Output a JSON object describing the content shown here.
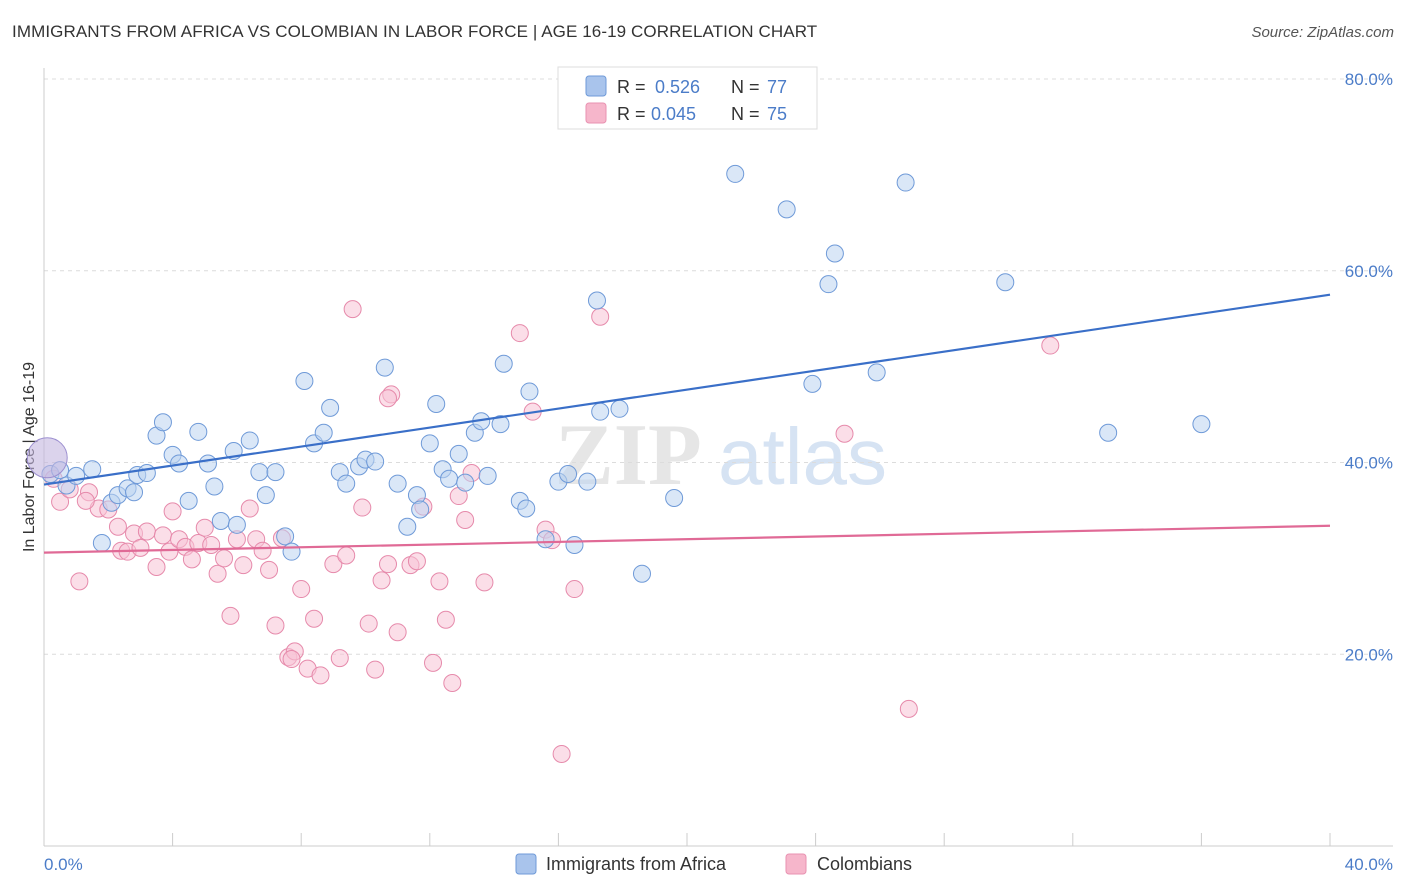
{
  "title": "IMMIGRANTS FROM AFRICA VS COLOMBIAN IN LABOR FORCE | AGE 16-19 CORRELATION CHART",
  "source": "Source: ZipAtlas.com",
  "watermark": {
    "zip": "ZIP",
    "atlas": "atlas"
  },
  "colors": {
    "blue": "#3a6fc8",
    "blue_fill": "#a9c4ec",
    "pink": "#e06a96",
    "pink_fill": "#f6b6cb",
    "grid": "#dddddd",
    "tick_text": "#4b7cc8"
  },
  "legend": {
    "rows": [
      {
        "r_label": "R =",
        "r_value": "0.526",
        "n_label": "N =",
        "n_value": "77"
      },
      {
        "r_label": "R =",
        "r_value": "0.045",
        "n_label": "N =",
        "n_value": "75"
      }
    ]
  },
  "chart_data": {
    "type": "scatter",
    "title": "IMMIGRANTS FROM AFRICA VS COLOMBIAN IN LABOR FORCE | AGE 16-19 CORRELATION CHART",
    "xlabel": "",
    "ylabel": "In Labor Force | Age 16-19",
    "xlim": [
      0,
      40
    ],
    "ylim": [
      0,
      80
    ],
    "x_tick_labels": [
      "0.0%",
      "40.0%"
    ],
    "y_ticks": [
      20,
      40,
      60,
      80
    ],
    "y_tick_labels": [
      "20.0%",
      "40.0%",
      "60.0%",
      "80.0%"
    ],
    "grid": true,
    "series": [
      {
        "name": "Immigrants from Africa",
        "r": 0.526,
        "n": 77,
        "trend": {
          "x": [
            0,
            40
          ],
          "y": [
            37.7,
            57.5
          ]
        },
        "points": [
          [
            0.2,
            38.8
          ],
          [
            0.5,
            39.2
          ],
          [
            0.7,
            37.6
          ],
          [
            1.0,
            38.6
          ],
          [
            1.5,
            39.3
          ],
          [
            1.8,
            31.6
          ],
          [
            2.1,
            35.8
          ],
          [
            2.3,
            36.6
          ],
          [
            2.6,
            37.3
          ],
          [
            2.8,
            36.9
          ],
          [
            2.9,
            38.7
          ],
          [
            3.2,
            38.9
          ],
          [
            3.5,
            42.8
          ],
          [
            3.7,
            44.2
          ],
          [
            4.0,
            40.8
          ],
          [
            4.2,
            39.9
          ],
          [
            4.5,
            36.0
          ],
          [
            4.8,
            43.2
          ],
          [
            5.1,
            39.9
          ],
          [
            5.3,
            37.5
          ],
          [
            5.5,
            33.9
          ],
          [
            5.9,
            41.2
          ],
          [
            6.0,
            33.5
          ],
          [
            6.4,
            42.3
          ],
          [
            6.7,
            39.0
          ],
          [
            6.9,
            36.6
          ],
          [
            7.2,
            39.0
          ],
          [
            7.5,
            32.3
          ],
          [
            7.7,
            30.7
          ],
          [
            8.1,
            48.5
          ],
          [
            8.4,
            42.0
          ],
          [
            8.7,
            43.1
          ],
          [
            8.9,
            45.7
          ],
          [
            9.2,
            39.0
          ],
          [
            9.4,
            37.8
          ],
          [
            9.8,
            39.6
          ],
          [
            10.0,
            40.3
          ],
          [
            10.3,
            40.1
          ],
          [
            10.6,
            49.9
          ],
          [
            11.0,
            37.8
          ],
          [
            11.3,
            33.3
          ],
          [
            11.6,
            36.6
          ],
          [
            12.0,
            42.0
          ],
          [
            12.2,
            46.1
          ],
          [
            12.4,
            39.3
          ],
          [
            12.6,
            38.3
          ],
          [
            12.9,
            40.9
          ],
          [
            13.1,
            37.9
          ],
          [
            13.4,
            43.1
          ],
          [
            13.6,
            44.3
          ],
          [
            13.8,
            38.6
          ],
          [
            14.2,
            44.0
          ],
          [
            14.3,
            50.3
          ],
          [
            14.8,
            36.0
          ],
          [
            15.1,
            47.4
          ],
          [
            15.6,
            32.0
          ],
          [
            16.0,
            38.0
          ],
          [
            16.3,
            38.8
          ],
          [
            16.5,
            31.4
          ],
          [
            16.9,
            38.0
          ],
          [
            17.2,
            56.9
          ],
          [
            17.3,
            45.3
          ],
          [
            17.9,
            45.6
          ],
          [
            18.6,
            28.4
          ],
          [
            19.6,
            36.3
          ],
          [
            21.5,
            70.1
          ],
          [
            23.1,
            66.4
          ],
          [
            23.9,
            48.2
          ],
          [
            24.4,
            58.6
          ],
          [
            24.6,
            61.8
          ],
          [
            25.9,
            49.4
          ],
          [
            26.8,
            69.2
          ],
          [
            29.9,
            58.8
          ],
          [
            33.1,
            43.1
          ],
          [
            36.0,
            44.0
          ],
          [
            15.0,
            35.2
          ],
          [
            11.7,
            35.1
          ]
        ]
      },
      {
        "name": "Colombians",
        "r": 0.045,
        "n": 75,
        "trend": {
          "x": [
            0,
            40
          ],
          "y": [
            30.6,
            33.4
          ]
        },
        "points": [
          [
            0.3,
            38.3
          ],
          [
            0.5,
            35.9
          ],
          [
            0.8,
            37.2
          ],
          [
            1.1,
            27.6
          ],
          [
            1.4,
            36.9
          ],
          [
            1.7,
            35.2
          ],
          [
            2.0,
            35.1
          ],
          [
            2.3,
            33.3
          ],
          [
            2.4,
            30.8
          ],
          [
            2.6,
            30.7
          ],
          [
            2.8,
            32.6
          ],
          [
            3.0,
            31.1
          ],
          [
            3.2,
            32.8
          ],
          [
            3.5,
            29.1
          ],
          [
            3.7,
            32.4
          ],
          [
            3.9,
            30.7
          ],
          [
            4.2,
            32.0
          ],
          [
            4.4,
            31.2
          ],
          [
            4.6,
            29.9
          ],
          [
            4.8,
            31.6
          ],
          [
            5.0,
            33.2
          ],
          [
            5.2,
            31.4
          ],
          [
            5.4,
            28.4
          ],
          [
            5.6,
            30.0
          ],
          [
            5.8,
            24.0
          ],
          [
            6.0,
            32.0
          ],
          [
            6.2,
            29.3
          ],
          [
            6.4,
            35.2
          ],
          [
            6.6,
            32.0
          ],
          [
            6.8,
            30.8
          ],
          [
            7.0,
            28.8
          ],
          [
            7.2,
            23.0
          ],
          [
            7.4,
            32.1
          ],
          [
            7.6,
            19.7
          ],
          [
            7.8,
            20.3
          ],
          [
            8.0,
            26.8
          ],
          [
            8.2,
            18.5
          ],
          [
            8.4,
            23.7
          ],
          [
            8.6,
            17.8
          ],
          [
            9.0,
            29.4
          ],
          [
            9.2,
            19.6
          ],
          [
            9.4,
            30.3
          ],
          [
            9.6,
            56.0
          ],
          [
            9.9,
            35.3
          ],
          [
            10.1,
            23.2
          ],
          [
            10.3,
            18.4
          ],
          [
            10.5,
            27.7
          ],
          [
            10.7,
            29.4
          ],
          [
            10.8,
            47.1
          ],
          [
            11.0,
            22.3
          ],
          [
            11.4,
            29.3
          ],
          [
            11.6,
            29.7
          ],
          [
            11.8,
            35.4
          ],
          [
            12.1,
            19.1
          ],
          [
            12.3,
            27.6
          ],
          [
            12.5,
            23.6
          ],
          [
            12.7,
            17.0
          ],
          [
            12.9,
            36.5
          ],
          [
            13.1,
            34.0
          ],
          [
            13.3,
            38.9
          ],
          [
            13.7,
            27.5
          ],
          [
            14.8,
            53.5
          ],
          [
            15.2,
            45.3
          ],
          [
            15.6,
            33.0
          ],
          [
            15.8,
            31.9
          ],
          [
            16.1,
            9.6
          ],
          [
            16.5,
            26.8
          ],
          [
            17.3,
            55.2
          ],
          [
            24.9,
            43.0
          ],
          [
            26.9,
            14.3
          ],
          [
            31.3,
            52.2
          ],
          [
            4.0,
            34.9
          ],
          [
            7.7,
            19.5
          ],
          [
            1.3,
            36.0
          ],
          [
            10.7,
            46.7
          ]
        ]
      }
    ]
  },
  "bottom_legend": {
    "items": [
      "Immigrants from Africa",
      "Colombians"
    ]
  }
}
